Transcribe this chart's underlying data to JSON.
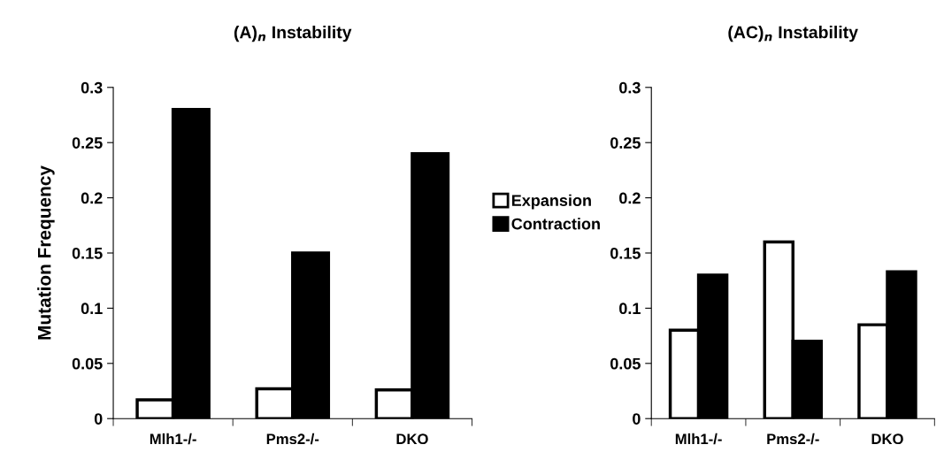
{
  "chart_data": [
    {
      "type": "bar",
      "title": "(A)$_{n}$ Instability",
      "ylabel": "Mutation Frequency",
      "categories": [
        "Mlh1-/-",
        "Pms2-/-",
        "DKO"
      ],
      "series": [
        {
          "name": "Expansion",
          "color": "#ffffff",
          "values": [
            0.017,
            0.027,
            0.026
          ]
        },
        {
          "name": "Contraction",
          "color": "#000000",
          "values": [
            0.28,
            0.15,
            0.24
          ]
        }
      ],
      "ylim": [
        0,
        0.3
      ],
      "yticks": [
        0,
        0.05,
        0.1,
        0.15,
        0.2,
        0.25,
        0.3
      ],
      "grid": false,
      "legend": "right"
    },
    {
      "type": "bar",
      "title": "(AC)$_{n}$ Instability",
      "categories": [
        "Mlh1-/-",
        "Pms2-/-",
        "DKO"
      ],
      "series": [
        {
          "color": "#ffffff",
          "values": [
            0.08,
            0.16,
            0.085
          ]
        },
        {
          "color": "#000000",
          "values": [
            0.13,
            0.07,
            0.133
          ]
        }
      ],
      "ylim": [
        0,
        0.3
      ],
      "yticks": [
        0,
        0.05,
        0.1,
        0.15,
        0.2,
        0.25,
        0.3
      ],
      "grid": false
    }
  ]
}
